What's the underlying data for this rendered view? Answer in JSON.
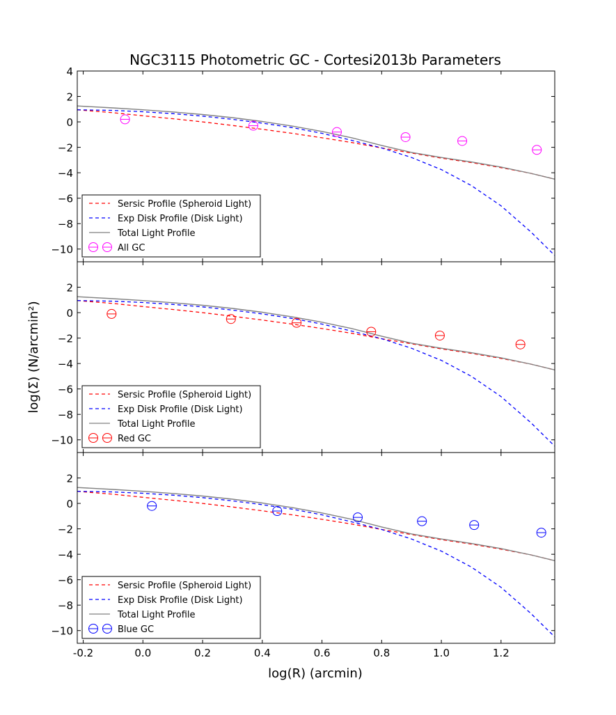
{
  "figure": {
    "title": "NGC3115 Photometric GC - Cortesi2013b Parameters",
    "xlabel": "log(R) (arcmin)",
    "ylabel": "log(Σ) (N/arcmin²)"
  },
  "chart_data": [
    {
      "type": "line",
      "panel": "All GC",
      "xlim": [
        -0.22,
        1.38
      ],
      "ylim": [
        -11,
        4
      ],
      "xticks": [
        -0.2,
        0.0,
        0.2,
        0.4,
        0.6,
        0.8,
        1.0,
        1.2
      ],
      "yticks": [
        -10,
        -8,
        -6,
        -4,
        -2,
        0,
        2,
        4
      ],
      "legend_position": "lower-left",
      "series": [
        {
          "name": "Sersic Profile (Spheroid Light)",
          "style": "dashed",
          "color": "#ff0000",
          "x": [
            -0.22,
            -0.1,
            0.0,
            0.1,
            0.2,
            0.3,
            0.4,
            0.5,
            0.6,
            0.7,
            0.8,
            0.9,
            1.0,
            1.1,
            1.2,
            1.3,
            1.38
          ],
          "y": [
            0.95,
            0.72,
            0.48,
            0.25,
            0.0,
            -0.28,
            -0.58,
            -0.9,
            -1.25,
            -1.62,
            -2.05,
            -2.45,
            -2.85,
            -3.2,
            -3.6,
            -4.05,
            -4.5
          ]
        },
        {
          "name": "Exp Disk Profile (Disk Light)",
          "style": "dashed",
          "color": "#0000ff",
          "x": [
            -0.22,
            -0.1,
            0.0,
            0.1,
            0.2,
            0.3,
            0.4,
            0.5,
            0.6,
            0.7,
            0.8,
            0.9,
            1.0,
            1.1,
            1.2,
            1.3,
            1.38
          ],
          "y": [
            0.95,
            0.9,
            0.8,
            0.65,
            0.45,
            0.2,
            -0.1,
            -0.45,
            -0.9,
            -1.45,
            -2.05,
            -2.8,
            -3.75,
            -5.0,
            -6.6,
            -8.65,
            -10.5
          ]
        },
        {
          "name": "Total Light Profile",
          "style": "solid",
          "color": "#808080",
          "x": [
            -0.22,
            -0.1,
            0.0,
            0.1,
            0.2,
            0.3,
            0.4,
            0.5,
            0.6,
            0.7,
            0.8,
            0.9,
            1.0,
            1.1,
            1.2,
            1.3,
            1.38
          ],
          "y": [
            1.25,
            1.1,
            0.95,
            0.78,
            0.58,
            0.33,
            0.03,
            -0.33,
            -0.75,
            -1.25,
            -1.85,
            -2.4,
            -2.8,
            -3.15,
            -3.55,
            -4.05,
            -4.5
          ]
        },
        {
          "name": "All GC",
          "style": "errorbar",
          "color": "#ff00ff",
          "x": [
            -0.06,
            0.37,
            0.65,
            0.88,
            1.07,
            1.32
          ],
          "y": [
            0.2,
            -0.3,
            -0.8,
            -1.2,
            -1.5,
            -2.2
          ]
        }
      ]
    },
    {
      "type": "line",
      "panel": "Red GC",
      "xlim": [
        -0.22,
        1.38
      ],
      "ylim": [
        -11,
        4
      ],
      "xticks": [
        -0.2,
        0.0,
        0.2,
        0.4,
        0.6,
        0.8,
        1.0,
        1.2
      ],
      "yticks": [
        -10,
        -8,
        -6,
        -4,
        -2,
        0,
        2
      ],
      "legend_position": "lower-left",
      "series": [
        {
          "name": "Sersic Profile (Spheroid Light)",
          "style": "dashed",
          "color": "#ff0000",
          "x": [
            -0.22,
            -0.1,
            0.0,
            0.1,
            0.2,
            0.3,
            0.4,
            0.5,
            0.6,
            0.7,
            0.8,
            0.9,
            1.0,
            1.1,
            1.2,
            1.3,
            1.38
          ],
          "y": [
            0.95,
            0.72,
            0.48,
            0.25,
            0.0,
            -0.28,
            -0.58,
            -0.9,
            -1.25,
            -1.62,
            -2.05,
            -2.45,
            -2.85,
            -3.2,
            -3.6,
            -4.05,
            -4.5
          ]
        },
        {
          "name": "Exp Disk Profile (Disk Light)",
          "style": "dashed",
          "color": "#0000ff",
          "x": [
            -0.22,
            -0.1,
            0.0,
            0.1,
            0.2,
            0.3,
            0.4,
            0.5,
            0.6,
            0.7,
            0.8,
            0.9,
            1.0,
            1.1,
            1.2,
            1.3,
            1.38
          ],
          "y": [
            0.95,
            0.9,
            0.8,
            0.65,
            0.45,
            0.2,
            -0.1,
            -0.45,
            -0.9,
            -1.45,
            -2.05,
            -2.8,
            -3.75,
            -5.0,
            -6.6,
            -8.65,
            -10.5
          ]
        },
        {
          "name": "Total Light Profile",
          "style": "solid",
          "color": "#808080",
          "x": [
            -0.22,
            -0.1,
            0.0,
            0.1,
            0.2,
            0.3,
            0.4,
            0.5,
            0.6,
            0.7,
            0.8,
            0.9,
            1.0,
            1.1,
            1.2,
            1.3,
            1.38
          ],
          "y": [
            1.25,
            1.1,
            0.95,
            0.78,
            0.58,
            0.33,
            0.03,
            -0.33,
            -0.75,
            -1.25,
            -1.85,
            -2.4,
            -2.8,
            -3.15,
            -3.55,
            -4.05,
            -4.5
          ]
        },
        {
          "name": "Red GC",
          "style": "errorbar",
          "color": "#ff0000",
          "x": [
            -0.105,
            0.295,
            0.515,
            0.765,
            0.995,
            1.265
          ],
          "y": [
            -0.1,
            -0.5,
            -0.8,
            -1.5,
            -1.8,
            -2.5
          ]
        }
      ]
    },
    {
      "type": "line",
      "panel": "Blue GC",
      "xlim": [
        -0.22,
        1.38
      ],
      "ylim": [
        -11,
        4
      ],
      "xticks": [
        -0.2,
        0.0,
        0.2,
        0.4,
        0.6,
        0.8,
        1.0,
        1.2
      ],
      "yticks": [
        -10,
        -8,
        -6,
        -4,
        -2,
        0,
        2
      ],
      "legend_position": "lower-left",
      "series": [
        {
          "name": "Sersic Profile (Spheroid Light)",
          "style": "dashed",
          "color": "#ff0000",
          "x": [
            -0.22,
            -0.1,
            0.0,
            0.1,
            0.2,
            0.3,
            0.4,
            0.5,
            0.6,
            0.7,
            0.8,
            0.9,
            1.0,
            1.1,
            1.2,
            1.3,
            1.38
          ],
          "y": [
            0.95,
            0.72,
            0.48,
            0.25,
            0.0,
            -0.28,
            -0.58,
            -0.9,
            -1.25,
            -1.62,
            -2.05,
            -2.45,
            -2.85,
            -3.2,
            -3.6,
            -4.05,
            -4.5
          ]
        },
        {
          "name": "Exp Disk Profile (Disk Light)",
          "style": "dashed",
          "color": "#0000ff",
          "x": [
            -0.22,
            -0.1,
            0.0,
            0.1,
            0.2,
            0.3,
            0.4,
            0.5,
            0.6,
            0.7,
            0.8,
            0.9,
            1.0,
            1.1,
            1.2,
            1.3,
            1.38
          ],
          "y": [
            0.95,
            0.9,
            0.8,
            0.65,
            0.45,
            0.2,
            -0.1,
            -0.45,
            -0.9,
            -1.45,
            -2.05,
            -2.8,
            -3.75,
            -5.0,
            -6.6,
            -8.65,
            -10.5
          ]
        },
        {
          "name": "Total Light Profile",
          "style": "solid",
          "color": "#808080",
          "x": [
            -0.22,
            -0.1,
            0.0,
            0.1,
            0.2,
            0.3,
            0.4,
            0.5,
            0.6,
            0.7,
            0.8,
            0.9,
            1.0,
            1.1,
            1.2,
            1.3,
            1.38
          ],
          "y": [
            1.25,
            1.1,
            0.95,
            0.78,
            0.58,
            0.33,
            0.03,
            -0.33,
            -0.75,
            -1.25,
            -1.85,
            -2.4,
            -2.8,
            -3.15,
            -3.55,
            -4.05,
            -4.5
          ]
        },
        {
          "name": "Blue GC",
          "style": "errorbar",
          "color": "#0000ff",
          "x": [
            0.03,
            0.45,
            0.72,
            0.935,
            1.11,
            1.335
          ],
          "y": [
            -0.2,
            -0.6,
            -1.1,
            -1.4,
            -1.7,
            -2.3
          ]
        }
      ]
    }
  ]
}
